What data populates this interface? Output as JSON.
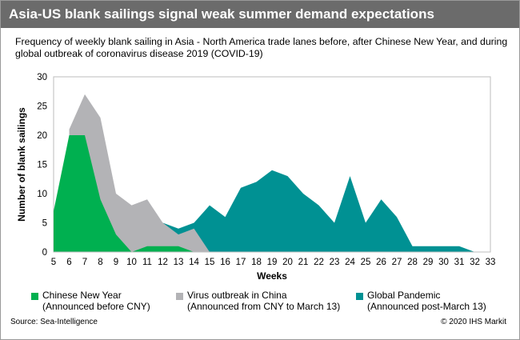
{
  "title": "Asia-US blank sailings signal weak summer demand expectations",
  "subtitle": "Frequency of weekly blank sailing in Asia - North America trade lanes before, after Chinese New Year, and during global outbreak of coronavirus disease 2019 (COVID-19)",
  "source": "Source: Sea-Intelligence",
  "copyright": "© 2020 IHS Markit",
  "chart_data": {
    "type": "area",
    "xlabel": "Weeks",
    "ylabel": "Number of blank sailings",
    "xlim": [
      5,
      33
    ],
    "ylim": [
      0,
      30
    ],
    "x_ticks": [
      5,
      6,
      7,
      8,
      9,
      10,
      11,
      12,
      13,
      14,
      15,
      16,
      17,
      18,
      19,
      20,
      21,
      22,
      23,
      24,
      25,
      26,
      27,
      28,
      29,
      30,
      31,
      32,
      33
    ],
    "y_ticks": [
      0,
      5,
      10,
      15,
      20,
      25,
      30
    ],
    "legend_position": "bottom",
    "series": [
      {
        "name": "Global Pandemic",
        "note": "(Announced post-March 13)",
        "color": "#009193",
        "x": [
          12,
          13,
          14,
          15,
          16,
          17,
          18,
          19,
          20,
          21,
          22,
          23,
          24,
          25,
          26,
          27,
          28,
          29,
          30,
          31,
          32
        ],
        "values": [
          5,
          4,
          5,
          8,
          6,
          11,
          12,
          14,
          13,
          10,
          8,
          5,
          13,
          5,
          9,
          6,
          1,
          1,
          1,
          1,
          0
        ]
      },
      {
        "name": "Virus outbreak in China",
        "note": "(Announced from CNY to March 13)",
        "color": "#b3b3b6",
        "x": [
          6,
          7,
          8,
          9,
          10,
          11,
          12,
          13,
          14,
          15
        ],
        "values": [
          21,
          27,
          23,
          10,
          8,
          9,
          5,
          3,
          4,
          0
        ]
      },
      {
        "name": "Chinese New Year",
        "note": "(Announced before CNY)",
        "color": "#00b050",
        "x": [
          5,
          6,
          7,
          8,
          9,
          10,
          11,
          12,
          13,
          14
        ],
        "values": [
          7,
          20,
          20,
          9,
          3,
          0,
          1,
          1,
          1,
          0
        ]
      }
    ]
  }
}
